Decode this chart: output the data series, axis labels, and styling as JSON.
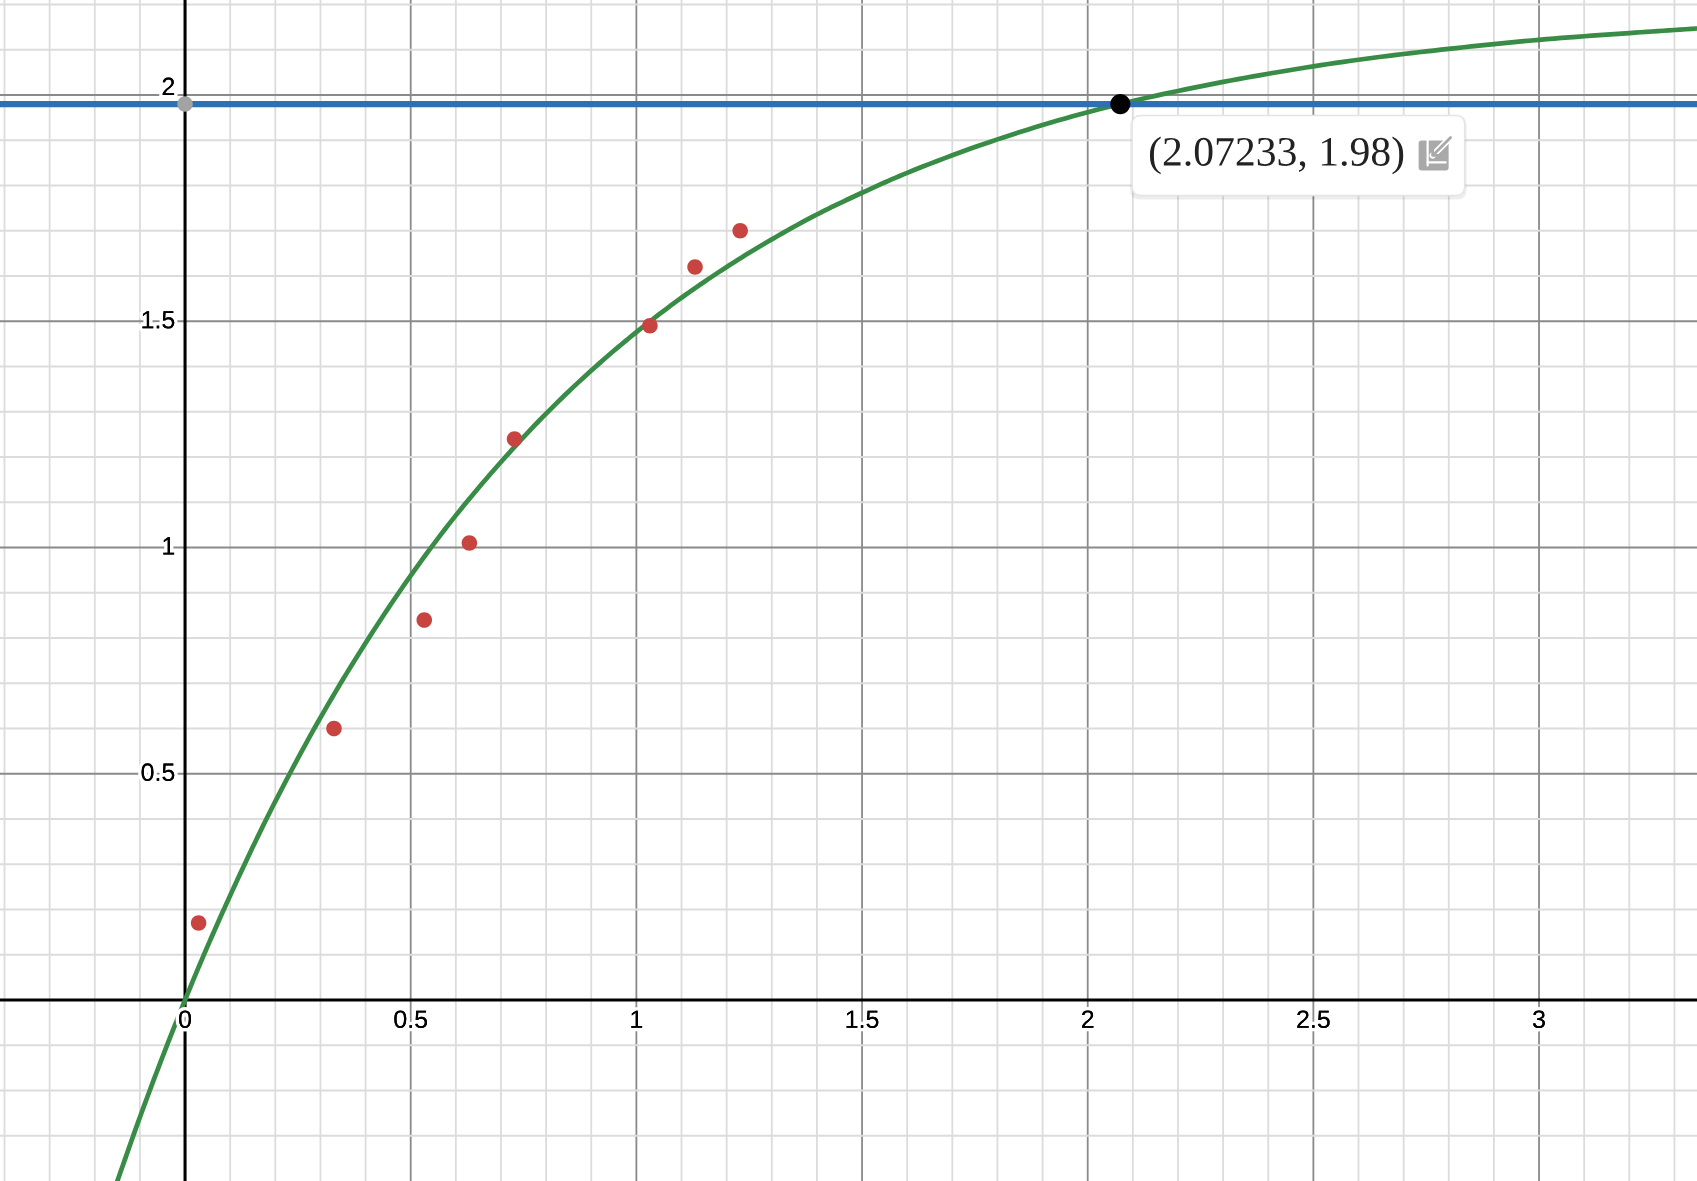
{
  "chart_data": {
    "type": "scatter",
    "xlim": [
      -0.41,
      3.35
    ],
    "ylim": [
      -0.4,
      2.21
    ],
    "xticks": [
      {
        "value": -0.4,
        "label": null
      },
      {
        "value": -0.3,
        "label": null
      },
      {
        "value": -0.2,
        "label": null
      },
      {
        "value": -0.1,
        "label": null
      },
      0,
      {
        "value": 0.1,
        "label": null
      },
      {
        "value": 0.2,
        "label": null
      },
      {
        "value": 0.3,
        "label": null
      },
      {
        "value": 0.4,
        "label": null
      },
      0.5,
      {
        "value": 0.6,
        "label": null
      },
      {
        "value": 0.7,
        "label": null
      },
      {
        "value": 0.8,
        "label": null
      },
      {
        "value": 0.9,
        "label": null
      },
      1,
      {
        "value": 1.1,
        "label": null
      },
      {
        "value": 1.2,
        "label": null
      },
      {
        "value": 1.3,
        "label": null
      },
      {
        "value": 1.4,
        "label": null
      },
      1.5,
      {
        "value": 1.6,
        "label": null
      },
      {
        "value": 1.7,
        "label": null
      },
      {
        "value": 1.8,
        "label": null
      },
      {
        "value": 1.9,
        "label": null
      },
      2,
      {
        "value": 2.1,
        "label": null
      },
      {
        "value": 2.2,
        "label": null
      },
      {
        "value": 2.3,
        "label": null
      },
      {
        "value": 2.4,
        "label": null
      },
      2.5,
      {
        "value": 2.6,
        "label": null
      },
      {
        "value": 2.7,
        "label": null
      },
      {
        "value": 2.8,
        "label": null
      },
      {
        "value": 2.9,
        "label": null
      },
      3,
      {
        "value": 3.1,
        "label": null
      },
      {
        "value": 3.2,
        "label": null
      },
      {
        "value": 3.3,
        "label": null
      }
    ],
    "yticks": [
      {
        "value": -0.3,
        "label": null
      },
      {
        "value": -0.2,
        "label": null
      },
      {
        "value": -0.1,
        "label": null
      },
      {
        "value": 0,
        "label": null
      },
      {
        "value": 0.1,
        "label": null
      },
      {
        "value": 0.2,
        "label": null
      },
      {
        "value": 0.3,
        "label": null
      },
      {
        "value": 0.4,
        "label": null
      },
      0.5,
      {
        "value": 0.6,
        "label": null
      },
      {
        "value": 0.7,
        "label": null
      },
      {
        "value": 0.8,
        "label": null
      },
      {
        "value": 0.9,
        "label": null
      },
      1,
      {
        "value": 1.1,
        "label": null
      },
      {
        "value": 1.2,
        "label": null
      },
      {
        "value": 1.3,
        "label": null
      },
      {
        "value": 1.4,
        "label": null
      },
      1.5,
      {
        "value": 1.6,
        "label": null
      },
      {
        "value": 1.7,
        "label": null
      },
      {
        "value": 1.8,
        "label": null
      },
      {
        "value": 1.9,
        "label": null
      },
      2,
      {
        "value": 2.1,
        "label": null
      },
      {
        "value": 2.2,
        "label": null
      }
    ],
    "grid": true,
    "marker": "circle",
    "line_style": "solid",
    "series": [
      {
        "x": [
          0.03,
          0.33,
          0.53,
          0.63,
          0.73,
          1.03,
          1.13,
          1.23
        ],
        "values": [
          0.17,
          0.6,
          0.84,
          1.01,
          1.24,
          1.49,
          1.62,
          1.7
        ],
        "color": "#c74440"
      },
      {
        "type": "line",
        "marker": "none",
        "x": [
          -0.15,
          -0.1,
          -0.05,
          0,
          0.05,
          0.1,
          0.15,
          0.2,
          0.3,
          0.4,
          0.5,
          0.6,
          0.7,
          0.8,
          0.9,
          1.0,
          1.1,
          1.2,
          1.3,
          1.4,
          1.5,
          1.6,
          1.8,
          2.0,
          2.2,
          2.4,
          2.6,
          2.8,
          3.0,
          3.2,
          3.35
        ],
        "values": [
          -0.4,
          -0.259,
          -0.126,
          0,
          0.119,
          0.231,
          0.338,
          0.439,
          0.624,
          0.789,
          0.938,
          1.071,
          1.189,
          1.296,
          1.391,
          1.476,
          1.552,
          1.62,
          1.681,
          1.736,
          1.784,
          1.828,
          1.902,
          1.962,
          2.009,
          2.047,
          2.078,
          2.102,
          2.122,
          2.137,
          2.147
        ],
        "color": "#388c46"
      },
      {
        "x": [
          0
        ],
        "values": [
          1.98
        ],
        "color": "#a3a3a3"
      },
      {
        "x": [
          2.07233
        ],
        "values": [
          1.98
        ],
        "color": "#000000"
      }
    ],
    "ref_lines": [
      {
        "axis": "y",
        "value": 1.98,
        "color": "#2d70b3"
      }
    ],
    "annotations": [
      {
        "text": "(2.07233, 1.98)",
        "x": 2.07233,
        "y": 1.98
      }
    ]
  }
}
